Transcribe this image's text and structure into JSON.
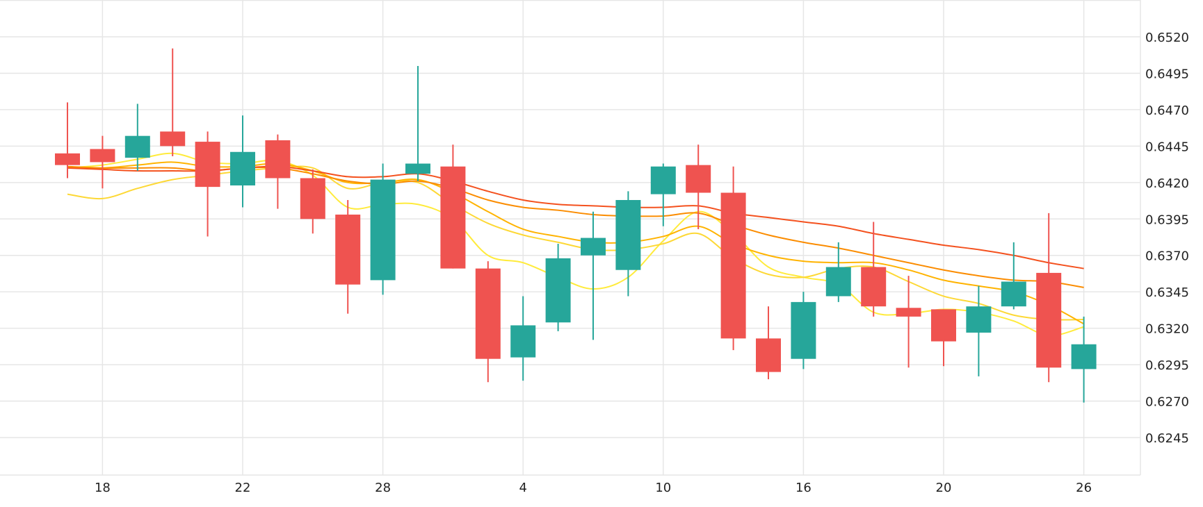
{
  "chart_data": {
    "type": "candlestick",
    "y_axis": {
      "position": "right",
      "ylim": [
        0.622,
        0.6545
      ],
      "ticks": [
        "0.6520",
        "0.6495",
        "0.6470",
        "0.6445",
        "0.6420",
        "0.6395",
        "0.6370",
        "0.6345",
        "0.6320",
        "0.6295",
        "0.6270",
        "0.6245"
      ]
    },
    "x_axis": {
      "ticks": [
        {
          "label": "18",
          "index": 1
        },
        {
          "label": "22",
          "index": 5
        },
        {
          "label": "28",
          "index": 9
        },
        {
          "label": "4",
          "index": 13
        },
        {
          "label": "10",
          "index": 17
        },
        {
          "label": "16",
          "index": 21
        },
        {
          "label": "20",
          "index": 25
        },
        {
          "label": "26",
          "index": 29
        }
      ]
    },
    "grid": true,
    "colors": {
      "up": "#26a69a",
      "down": "#ef5350",
      "grid": "#e6e6e6",
      "ma_lines": [
        "#ffeb3b",
        "#fdd835",
        "#ffb300",
        "#fb8c00",
        "#f4511e"
      ]
    },
    "candles": [
      {
        "open": 0.644,
        "high": 0.6475,
        "low": 0.6423,
        "close": 0.6432
      },
      {
        "open": 0.6443,
        "high": 0.6452,
        "low": 0.6416,
        "close": 0.6434
      },
      {
        "open": 0.6437,
        "high": 0.6474,
        "low": 0.6428,
        "close": 0.6452
      },
      {
        "open": 0.6455,
        "high": 0.6512,
        "low": 0.6438,
        "close": 0.6445
      },
      {
        "open": 0.6448,
        "high": 0.6455,
        "low": 0.6383,
        "close": 0.6417
      },
      {
        "open": 0.6418,
        "high": 0.6466,
        "low": 0.6403,
        "close": 0.6441
      },
      {
        "open": 0.6449,
        "high": 0.6453,
        "low": 0.6402,
        "close": 0.6423
      },
      {
        "open": 0.6423,
        "high": 0.6429,
        "low": 0.6385,
        "close": 0.6395
      },
      {
        "open": 0.6398,
        "high": 0.6408,
        "low": 0.633,
        "close": 0.635
      },
      {
        "open": 0.6353,
        "high": 0.6433,
        "low": 0.6343,
        "close": 0.6422
      },
      {
        "open": 0.6426,
        "high": 0.65,
        "low": 0.6421,
        "close": 0.6433
      },
      {
        "open": 0.6431,
        "high": 0.6446,
        "low": 0.6361,
        "close": 0.6361
      },
      {
        "open": 0.6361,
        "high": 0.6366,
        "low": 0.6283,
        "close": 0.6299
      },
      {
        "open": 0.63,
        "high": 0.6342,
        "low": 0.6284,
        "close": 0.6322
      },
      {
        "open": 0.6324,
        "high": 0.6378,
        "low": 0.6318,
        "close": 0.6368
      },
      {
        "open": 0.637,
        "high": 0.64,
        "low": 0.6312,
        "close": 0.6382
      },
      {
        "open": 0.636,
        "high": 0.6414,
        "low": 0.6342,
        "close": 0.6408
      },
      {
        "open": 0.6412,
        "high": 0.6433,
        "low": 0.639,
        "close": 0.6431
      },
      {
        "open": 0.6432,
        "high": 0.6446,
        "low": 0.6388,
        "close": 0.6413
      },
      {
        "open": 0.6413,
        "high": 0.6431,
        "low": 0.6305,
        "close": 0.6313
      },
      {
        "open": 0.6313,
        "high": 0.6335,
        "low": 0.6285,
        "close": 0.629
      },
      {
        "open": 0.6299,
        "high": 0.6345,
        "low": 0.6292,
        "close": 0.6338
      },
      {
        "open": 0.6342,
        "high": 0.6379,
        "low": 0.6338,
        "close": 0.6362
      },
      {
        "open": 0.6362,
        "high": 0.6393,
        "low": 0.6328,
        "close": 0.6335
      },
      {
        "open": 0.6334,
        "high": 0.6356,
        "low": 0.6293,
        "close": 0.6328
      },
      {
        "open": 0.6333,
        "high": 0.6333,
        "low": 0.6294,
        "close": 0.6311
      },
      {
        "open": 0.6317,
        "high": 0.6349,
        "low": 0.6287,
        "close": 0.6335
      },
      {
        "open": 0.6335,
        "high": 0.6379,
        "low": 0.6333,
        "close": 0.6352
      },
      {
        "open": 0.6358,
        "high": 0.6399,
        "low": 0.6283,
        "close": 0.6293
      },
      {
        "open": 0.6292,
        "high": 0.6328,
        "low": 0.6269,
        "close": 0.6309
      }
    ],
    "series": [
      {
        "values": [
          0.643,
          0.6432,
          0.6436,
          0.644,
          0.6434,
          0.6433,
          0.6435,
          0.6425,
          0.6403,
          0.6405,
          0.6405,
          0.6395,
          0.637,
          0.6365,
          0.6355,
          0.6347,
          0.6355,
          0.638,
          0.64,
          0.6385,
          0.6362,
          0.6355,
          0.635,
          0.6331,
          0.633,
          0.6333,
          0.6331,
          0.6325,
          0.6315,
          0.6321
        ]
      },
      {
        "values": [
          0.6412,
          0.6409,
          0.6416,
          0.6422,
          0.6425,
          0.6428,
          0.643,
          0.643,
          0.6416,
          0.642,
          0.642,
          0.6405,
          0.6392,
          0.6384,
          0.6379,
          0.6374,
          0.6374,
          0.6378,
          0.6385,
          0.6368,
          0.6357,
          0.6355,
          0.6361,
          0.6362,
          0.6352,
          0.6342,
          0.6337,
          0.6329,
          0.6326,
          0.6326
        ]
      },
      {
        "values": [
          0.643,
          0.643,
          0.6432,
          0.6434,
          0.6431,
          0.6431,
          0.6433,
          0.6428,
          0.642,
          0.642,
          0.6422,
          0.6413,
          0.64,
          0.6388,
          0.6383,
          0.6379,
          0.6379,
          0.6383,
          0.639,
          0.6378,
          0.637,
          0.6366,
          0.6365,
          0.6365,
          0.636,
          0.6353,
          0.6349,
          0.6345,
          0.6336,
          0.6323
        ]
      },
      {
        "values": [
          0.6431,
          0.643,
          0.643,
          0.643,
          0.6428,
          0.643,
          0.643,
          0.6426,
          0.6421,
          0.6419,
          0.6421,
          0.6416,
          0.6408,
          0.6403,
          0.6401,
          0.6398,
          0.6397,
          0.6397,
          0.6399,
          0.6391,
          0.6384,
          0.6379,
          0.6375,
          0.637,
          0.6365,
          0.636,
          0.6356,
          0.6353,
          0.6352,
          0.6348
        ]
      },
      {
        "values": [
          0.643,
          0.6429,
          0.6428,
          0.6428,
          0.6428,
          0.643,
          0.6431,
          0.6428,
          0.6424,
          0.6424,
          0.6426,
          0.6421,
          0.6414,
          0.6408,
          0.6405,
          0.6404,
          0.6403,
          0.6403,
          0.6404,
          0.6399,
          0.6396,
          0.6393,
          0.639,
          0.6385,
          0.6381,
          0.6377,
          0.6374,
          0.637,
          0.6365,
          0.6361
        ]
      }
    ]
  }
}
